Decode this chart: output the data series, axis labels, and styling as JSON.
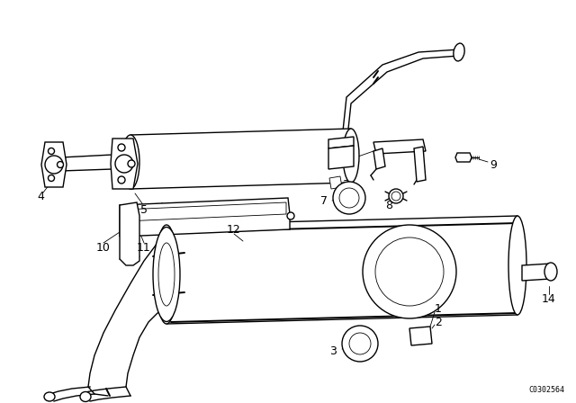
{
  "background_color": "#ffffff",
  "line_color": "#000000",
  "diagram_code": "C0302564",
  "figsize": [
    6.4,
    4.48
  ],
  "dpi": 100
}
